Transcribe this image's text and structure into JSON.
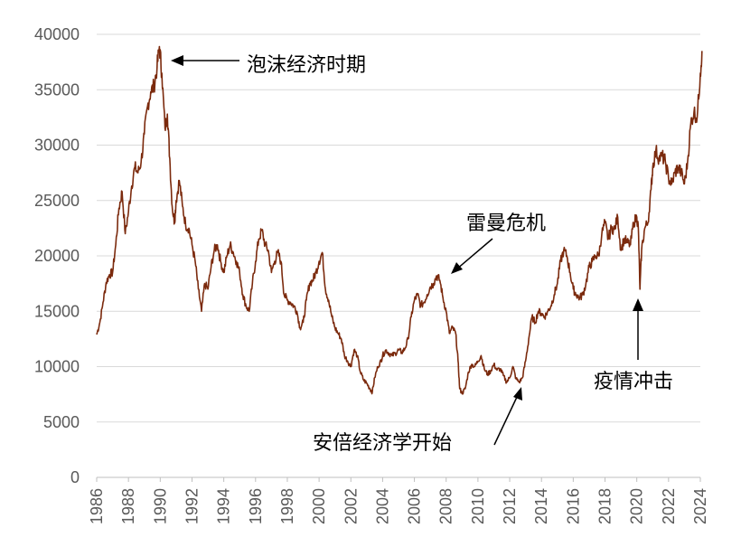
{
  "chart_data": {
    "type": "line",
    "title": "",
    "xlabel": "",
    "ylabel": "",
    "xlim": [
      1986,
      2024
    ],
    "ylim": [
      0,
      40000
    ],
    "grid": true,
    "legend": "none",
    "x_ticks": [
      "1986",
      "1988",
      "1990",
      "1992",
      "1994",
      "1996",
      "1998",
      "2000",
      "2002",
      "2004",
      "2006",
      "2008",
      "2010",
      "2012",
      "2014",
      "2016",
      "2018",
      "2020",
      "2022",
      "2024"
    ],
    "y_ticks": [
      "0",
      "5000",
      "10000",
      "15000",
      "20000",
      "25000",
      "30000",
      "35000",
      "40000"
    ],
    "series": [
      {
        "color": "#7b2a0d",
        "points": [
          [
            1986.0,
            12900
          ],
          [
            1986.2,
            14000
          ],
          [
            1986.4,
            15800
          ],
          [
            1986.6,
            17600
          ],
          [
            1986.8,
            18300
          ],
          [
            1987.0,
            18500
          ],
          [
            1987.2,
            21000
          ],
          [
            1987.4,
            24300
          ],
          [
            1987.6,
            25800
          ],
          [
            1987.8,
            22000
          ],
          [
            1988.0,
            24000
          ],
          [
            1988.2,
            26300
          ],
          [
            1988.4,
            28000
          ],
          [
            1988.6,
            27500
          ],
          [
            1988.8,
            28500
          ],
          [
            1989.0,
            31000
          ],
          [
            1989.2,
            33500
          ],
          [
            1989.4,
            34800
          ],
          [
            1989.6,
            35300
          ],
          [
            1989.8,
            37000
          ],
          [
            1989.95,
            38900
          ],
          [
            1990.1,
            36500
          ],
          [
            1990.3,
            31500
          ],
          [
            1990.45,
            32800
          ],
          [
            1990.6,
            28800
          ],
          [
            1990.75,
            24500
          ],
          [
            1990.9,
            23000
          ],
          [
            1991.0,
            25000
          ],
          [
            1991.2,
            26800
          ],
          [
            1991.4,
            24500
          ],
          [
            1991.6,
            22800
          ],
          [
            1991.8,
            22500
          ],
          [
            1992.0,
            21000
          ],
          [
            1992.2,
            19500
          ],
          [
            1992.4,
            17000
          ],
          [
            1992.6,
            15000
          ],
          [
            1992.8,
            17500
          ],
          [
            1993.0,
            17000
          ],
          [
            1993.2,
            19000
          ],
          [
            1993.4,
            20500
          ],
          [
            1993.6,
            21000
          ],
          [
            1993.8,
            19500
          ],
          [
            1994.0,
            18500
          ],
          [
            1994.2,
            20000
          ],
          [
            1994.4,
            21000
          ],
          [
            1994.6,
            20300
          ],
          [
            1994.8,
            19500
          ],
          [
            1995.0,
            18500
          ],
          [
            1995.2,
            16500
          ],
          [
            1995.4,
            15500
          ],
          [
            1995.6,
            15000
          ],
          [
            1995.8,
            17500
          ],
          [
            1996.0,
            19500
          ],
          [
            1996.2,
            21500
          ],
          [
            1996.4,
            22300
          ],
          [
            1996.6,
            21000
          ],
          [
            1996.8,
            20500
          ],
          [
            1997.0,
            18500
          ],
          [
            1997.2,
            19500
          ],
          [
            1997.4,
            20300
          ],
          [
            1997.6,
            19500
          ],
          [
            1997.8,
            16500
          ],
          [
            1998.0,
            16000
          ],
          [
            1998.2,
            15800
          ],
          [
            1998.4,
            15500
          ],
          [
            1998.6,
            15000
          ],
          [
            1998.8,
            13500
          ],
          [
            1999.0,
            14000
          ],
          [
            1999.2,
            16000
          ],
          [
            1999.4,
            17500
          ],
          [
            1999.6,
            17800
          ],
          [
            1999.8,
            18500
          ],
          [
            2000.0,
            19500
          ],
          [
            2000.2,
            20300
          ],
          [
            2000.4,
            17000
          ],
          [
            2000.6,
            16000
          ],
          [
            2000.8,
            14500
          ],
          [
            2001.0,
            13500
          ],
          [
            2001.2,
            13000
          ],
          [
            2001.4,
            12500
          ],
          [
            2001.6,
            11000
          ],
          [
            2001.8,
            10500
          ],
          [
            2002.0,
            10000
          ],
          [
            2002.2,
            11500
          ],
          [
            2002.4,
            11000
          ],
          [
            2002.6,
            9500
          ],
          [
            2002.8,
            8800
          ],
          [
            2003.0,
            8500
          ],
          [
            2003.2,
            8000
          ],
          [
            2003.35,
            7700
          ],
          [
            2003.5,
            9000
          ],
          [
            2003.7,
            10000
          ],
          [
            2003.9,
            10500
          ],
          [
            2004.0,
            11000
          ],
          [
            2004.2,
            11500
          ],
          [
            2004.4,
            11200
          ],
          [
            2004.6,
            11000
          ],
          [
            2004.8,
            11200
          ],
          [
            2005.0,
            11500
          ],
          [
            2005.2,
            11300
          ],
          [
            2005.4,
            11600
          ],
          [
            2005.6,
            12500
          ],
          [
            2005.8,
            14500
          ],
          [
            2006.0,
            16000
          ],
          [
            2006.2,
            16500
          ],
          [
            2006.4,
            15500
          ],
          [
            2006.6,
            15800
          ],
          [
            2006.8,
            16500
          ],
          [
            2007.0,
            17200
          ],
          [
            2007.2,
            17500
          ],
          [
            2007.4,
            18200
          ],
          [
            2007.6,
            17800
          ],
          [
            2007.8,
            16200
          ],
          [
            2008.0,
            15000
          ],
          [
            2008.2,
            13000
          ],
          [
            2008.4,
            13500
          ],
          [
            2008.6,
            13000
          ],
          [
            2008.75,
            10500
          ],
          [
            2008.85,
            8000
          ],
          [
            2009.0,
            7600
          ],
          [
            2009.2,
            8000
          ],
          [
            2009.4,
            9500
          ],
          [
            2009.6,
            10200
          ],
          [
            2009.8,
            10000
          ],
          [
            2010.0,
            10500
          ],
          [
            2010.2,
            11000
          ],
          [
            2010.4,
            9800
          ],
          [
            2010.6,
            9300
          ],
          [
            2010.8,
            9600
          ],
          [
            2011.0,
            10200
          ],
          [
            2011.2,
            9700
          ],
          [
            2011.4,
            9800
          ],
          [
            2011.6,
            9200
          ],
          [
            2011.8,
            8600
          ],
          [
            2012.0,
            9000
          ],
          [
            2012.2,
            10000
          ],
          [
            2012.4,
            8900
          ],
          [
            2012.6,
            8600
          ],
          [
            2012.8,
            9000
          ],
          [
            2013.0,
            10500
          ],
          [
            2013.2,
            12500
          ],
          [
            2013.4,
            14500
          ],
          [
            2013.6,
            14000
          ],
          [
            2013.8,
            15000
          ],
          [
            2014.0,
            14800
          ],
          [
            2014.2,
            14500
          ],
          [
            2014.4,
            15000
          ],
          [
            2014.6,
            15500
          ],
          [
            2014.8,
            16500
          ],
          [
            2015.0,
            17500
          ],
          [
            2015.2,
            19500
          ],
          [
            2015.4,
            20500
          ],
          [
            2015.6,
            20000
          ],
          [
            2015.8,
            18500
          ],
          [
            2016.0,
            17000
          ],
          [
            2016.2,
            16500
          ],
          [
            2016.4,
            16200
          ],
          [
            2016.6,
            16500
          ],
          [
            2016.8,
            17500
          ],
          [
            2017.0,
            19000
          ],
          [
            2017.2,
            19500
          ],
          [
            2017.4,
            20000
          ],
          [
            2017.6,
            20000
          ],
          [
            2017.8,
            22000
          ],
          [
            2018.0,
            23000
          ],
          [
            2018.2,
            21500
          ],
          [
            2018.4,
            22500
          ],
          [
            2018.6,
            22400
          ],
          [
            2018.8,
            23500
          ],
          [
            2019.0,
            20500
          ],
          [
            2019.2,
            21500
          ],
          [
            2019.4,
            21200
          ],
          [
            2019.6,
            21000
          ],
          [
            2019.8,
            23000
          ],
          [
            2020.0,
            23500
          ],
          [
            2020.1,
            22500
          ],
          [
            2020.2,
            17000
          ],
          [
            2020.3,
            20500
          ],
          [
            2020.5,
            22500
          ],
          [
            2020.7,
            23000
          ],
          [
            2020.9,
            26000
          ],
          [
            2021.0,
            28000
          ],
          [
            2021.2,
            29500
          ],
          [
            2021.4,
            28800
          ],
          [
            2021.6,
            29000
          ],
          [
            2021.8,
            28500
          ],
          [
            2022.0,
            27000
          ],
          [
            2022.2,
            26500
          ],
          [
            2022.4,
            27500
          ],
          [
            2022.6,
            28000
          ],
          [
            2022.8,
            27500
          ],
          [
            2023.0,
            26500
          ],
          [
            2023.2,
            28500
          ],
          [
            2023.4,
            32000
          ],
          [
            2023.6,
            33000
          ],
          [
            2023.8,
            32500
          ],
          [
            2024.0,
            36500
          ],
          [
            2024.1,
            38500
          ]
        ]
      }
    ],
    "annotations": [
      {
        "text": "泡沫经济时期"
      },
      {
        "text": "雷曼危机"
      },
      {
        "text": "安倍经济学开始"
      },
      {
        "text": "疫情冲击"
      }
    ]
  }
}
